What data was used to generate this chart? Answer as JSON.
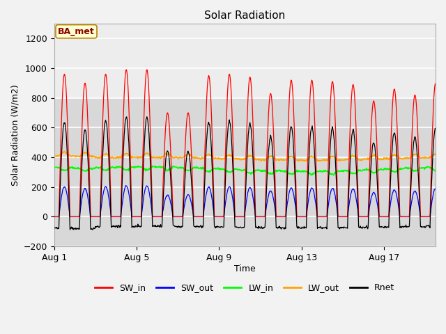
{
  "title": "Solar Radiation",
  "xlabel": "Time",
  "ylabel": "Solar Radiation (W/m2)",
  "ylim": [
    -200,
    1300
  ],
  "yticks": [
    -200,
    0,
    200,
    400,
    600,
    800,
    1000,
    1200
  ],
  "xtick_labels": [
    "Aug 1",
    "Aug 5",
    "Aug 9",
    "Aug 13",
    "Aug 17"
  ],
  "xtick_positions": [
    0,
    4,
    8,
    12,
    16
  ],
  "n_days": 18.5,
  "SW_in_color": "#ff0000",
  "SW_out_color": "#0000ff",
  "LW_in_color": "#00ff00",
  "LW_out_color": "#ffa500",
  "Rnet_color": "#000000",
  "annotation_text": "BA_met",
  "annotation_color": "#8b0000",
  "annotation_bg": "#ffffd0",
  "annotation_border": "#b8860b",
  "shaded_ymin": 800,
  "shaded_ymax": 1300,
  "bg_color": "#d8d8d8",
  "plot_bg": "#ffffff",
  "grid_color": "#ffffff"
}
